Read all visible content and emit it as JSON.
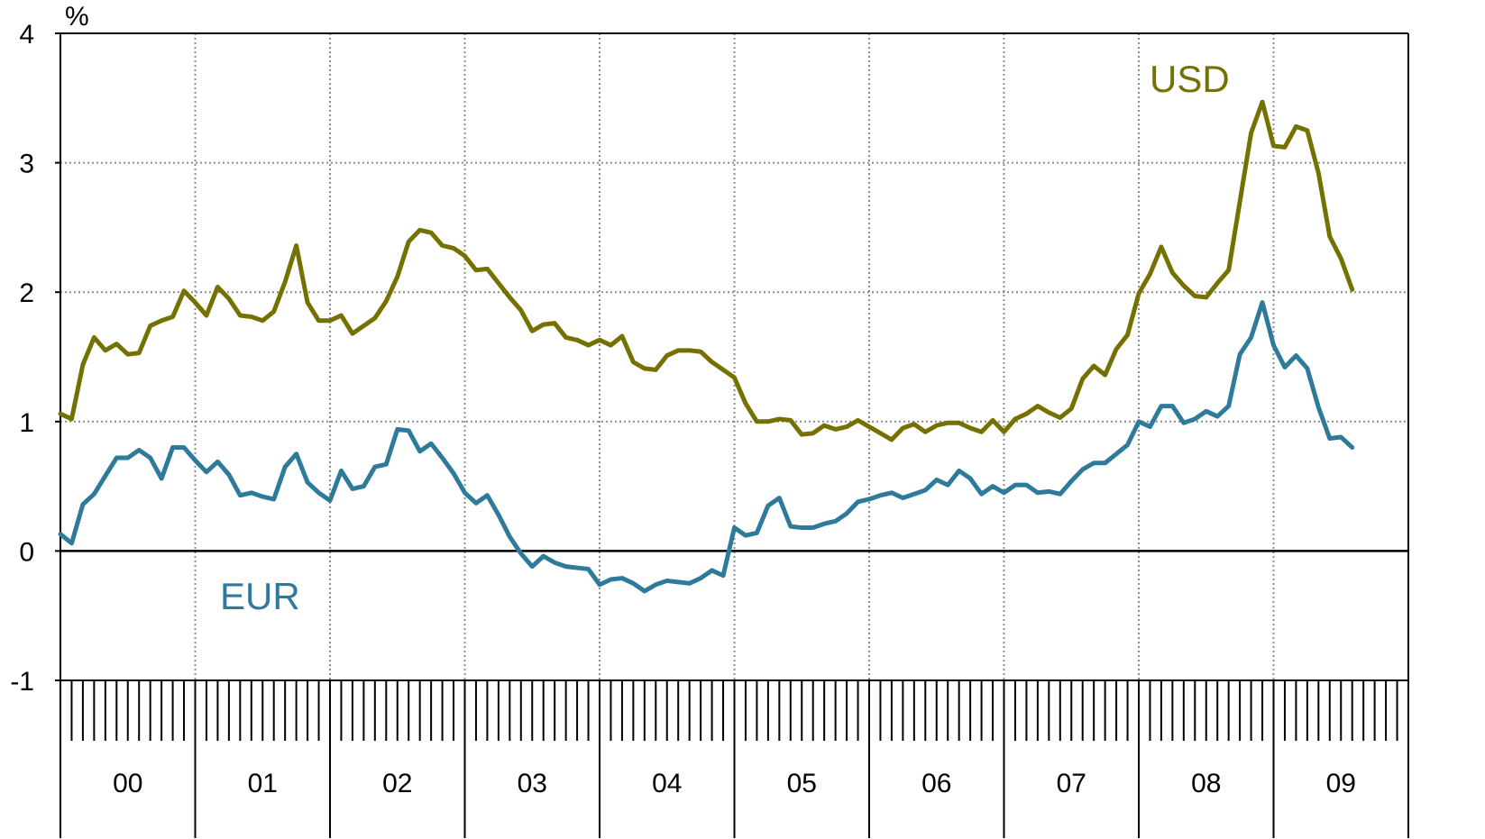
{
  "chart_data": {
    "type": "line",
    "unit_label": "%",
    "ylim": [
      -1,
      4
    ],
    "y_ticks": [
      -1,
      0,
      1,
      2,
      3,
      4
    ],
    "grid": true,
    "years": [
      "00",
      "01",
      "02",
      "03",
      "04",
      "05",
      "06",
      "07",
      "08",
      "09"
    ],
    "x_start": 2000.0,
    "x_end": 2010.0,
    "x_months_per_year": 12,
    "series": [
      {
        "name": "USD",
        "color": "#757100",
        "x_start": 2000.0,
        "x_step_months": 1,
        "values": [
          1.06,
          1.02,
          1.44,
          1.65,
          1.55,
          1.6,
          1.52,
          1.53,
          1.74,
          1.78,
          1.81,
          2.01,
          1.92,
          1.82,
          2.04,
          1.95,
          1.82,
          1.81,
          1.78,
          1.85,
          2.08,
          2.36,
          1.92,
          1.78,
          1.78,
          1.82,
          1.68,
          1.74,
          1.8,
          1.93,
          2.12,
          2.39,
          2.48,
          2.46,
          2.36,
          2.34,
          2.28,
          2.17,
          2.18,
          2.07,
          1.96,
          1.86,
          1.7,
          1.75,
          1.76,
          1.65,
          1.63,
          1.59,
          1.63,
          1.59,
          1.66,
          1.46,
          1.41,
          1.4,
          1.51,
          1.55,
          1.55,
          1.54,
          1.46,
          1.4,
          1.34,
          1.14,
          1.0,
          1.0,
          1.02,
          1.01,
          0.9,
          0.91,
          0.97,
          0.94,
          0.96,
          1.01,
          0.96,
          0.91,
          0.86,
          0.95,
          0.98,
          0.92,
          0.97,
          0.99,
          0.99,
          0.95,
          0.92,
          1.01,
          0.92,
          1.02,
          1.06,
          1.12,
          1.07,
          1.03,
          1.1,
          1.33,
          1.43,
          1.36,
          1.56,
          1.67,
          1.99,
          2.14,
          2.35,
          2.15,
          2.05,
          1.97,
          1.96,
          2.07,
          2.17,
          2.7,
          3.23,
          3.47,
          3.13,
          3.12,
          3.28,
          3.25,
          2.92,
          2.43,
          2.26,
          2.02
        ]
      },
      {
        "name": "EUR",
        "color": "#2e7a9a",
        "x_start": 2000.0,
        "x_step_months": 1,
        "values": [
          0.13,
          0.06,
          0.36,
          0.44,
          0.58,
          0.72,
          0.72,
          0.78,
          0.72,
          0.56,
          0.8,
          0.8,
          0.7,
          0.61,
          0.69,
          0.59,
          0.43,
          0.45,
          0.42,
          0.4,
          0.65,
          0.75,
          0.53,
          0.45,
          0.39,
          0.62,
          0.48,
          0.5,
          0.65,
          0.67,
          0.94,
          0.93,
          0.77,
          0.83,
          0.72,
          0.6,
          0.45,
          0.37,
          0.43,
          0.28,
          0.11,
          -0.02,
          -0.12,
          -0.04,
          -0.09,
          -0.12,
          -0.13,
          -0.14,
          -0.26,
          -0.22,
          -0.21,
          -0.25,
          -0.31,
          -0.26,
          -0.23,
          -0.24,
          -0.25,
          -0.21,
          -0.15,
          -0.19,
          0.18,
          0.12,
          0.14,
          0.35,
          0.41,
          0.19,
          0.18,
          0.18,
          0.21,
          0.23,
          0.29,
          0.38,
          0.4,
          0.43,
          0.45,
          0.41,
          0.44,
          0.47,
          0.55,
          0.51,
          0.62,
          0.56,
          0.44,
          0.5,
          0.45,
          0.51,
          0.51,
          0.45,
          0.46,
          0.44,
          0.54,
          0.63,
          0.68,
          0.68,
          0.75,
          0.82,
          1.0,
          0.96,
          1.12,
          1.12,
          0.99,
          1.02,
          1.08,
          1.04,
          1.12,
          1.52,
          1.65,
          1.92,
          1.59,
          1.42,
          1.51,
          1.41,
          1.11,
          0.87,
          0.88,
          0.8
        ]
      }
    ]
  }
}
